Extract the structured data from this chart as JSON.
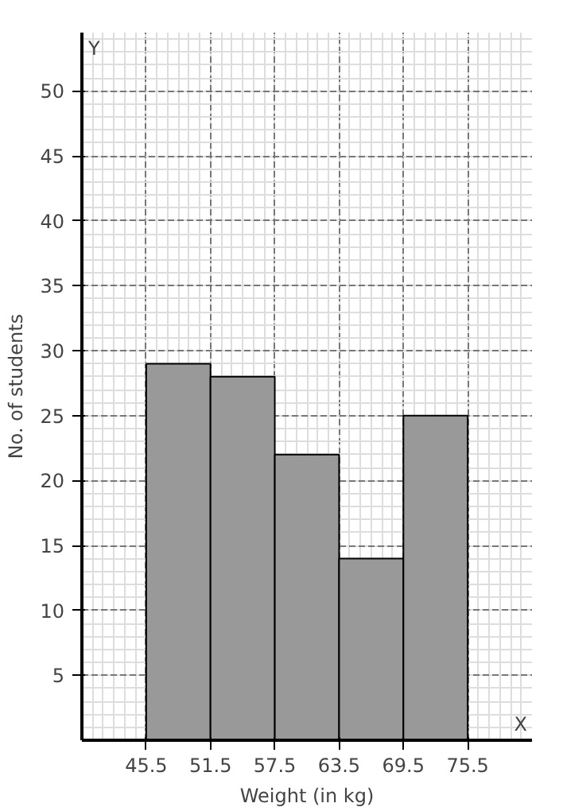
{
  "chart_data": {
    "type": "histogram",
    "xlabel": "Weight (in kg)",
    "ylabel": "No. of students",
    "bins": [
      45.5,
      51.5,
      57.5,
      63.5,
      69.5,
      75.5
    ],
    "values": [
      29,
      28,
      22,
      14,
      25
    ],
    "color": "#999999",
    "xlim": [
      39.5,
      81.5
    ],
    "xticks": [
      45.5,
      51.5,
      57.5,
      63.5,
      69.5,
      75.5
    ],
    "ylim": [
      0,
      54.5
    ],
    "yticks": [
      5,
      10,
      15,
      20,
      25,
      30,
      35,
      40,
      45,
      50
    ],
    "grid": true,
    "annotations": [
      "X",
      "Y"
    ]
  }
}
